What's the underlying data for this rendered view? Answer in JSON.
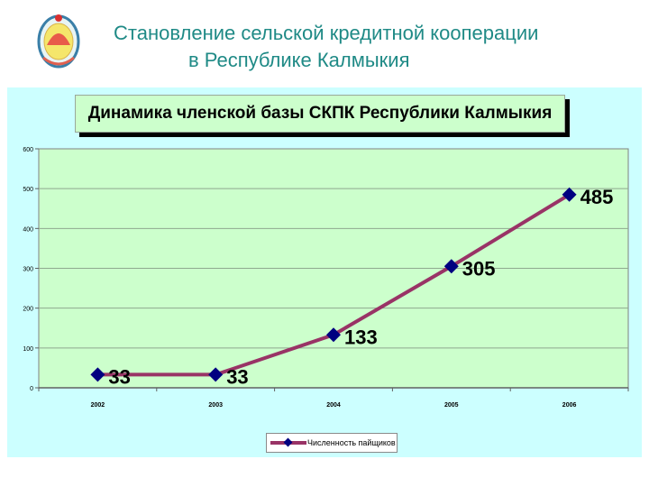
{
  "slide": {
    "title_line1": "Становление сельской кредитной кооперации",
    "title_line2": "в Республике Калмыкия",
    "emblem_icon": "republic-of-kalmykia-emblem"
  },
  "colors": {
    "title_text": "#1f8a86",
    "panel_bg": "#ccffff",
    "plot_bg": "#ccffcc",
    "line": "#993366",
    "marker": "#000080",
    "gridline": "#8fa88f"
  },
  "chart_data": {
    "type": "line",
    "title": "Динамика членской базы СКПК Республики Калмыкия",
    "categories": [
      "2002",
      "2003",
      "2004",
      "2005",
      "2006"
    ],
    "series": [
      {
        "name": "Численность пайщиков",
        "values": [
          33,
          33,
          133,
          305,
          485
        ]
      }
    ],
    "data_labels": [
      "33",
      "33",
      "133",
      "305",
      "485"
    ],
    "xlabel": "",
    "ylabel": "",
    "ylim": [
      0,
      600
    ],
    "yticks": [
      "0",
      "100",
      "200",
      "300",
      "400",
      "500",
      "600"
    ],
    "grid": true,
    "legend_position": "bottom"
  }
}
